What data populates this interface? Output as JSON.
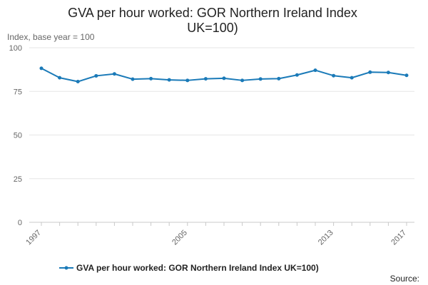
{
  "chart_data": {
    "type": "line",
    "title_lines": [
      "GVA per hour worked: GOR Northern Ireland Index",
      "UK=100)"
    ],
    "subtitle": "Index, base year = 100",
    "xlabel": "",
    "ylabel": "",
    "x": [
      1997,
      1998,
      1999,
      2000,
      2001,
      2002,
      2003,
      2004,
      2005,
      2006,
      2007,
      2008,
      2009,
      2010,
      2011,
      2012,
      2013,
      2014,
      2015,
      2016,
      2017
    ],
    "x_tick_labels": [
      "1997",
      "2005",
      "2013",
      "2017"
    ],
    "y_tick_labels": [
      "0",
      "25",
      "50",
      "75",
      "100"
    ],
    "ylim": [
      0,
      100
    ],
    "grid": true,
    "legend_position": "bottom",
    "series": [
      {
        "name": "GVA per hour worked: GOR Northern Ireland Index UK=100)",
        "values": [
          88.2,
          82.8,
          80.6,
          83.9,
          85.0,
          82.0,
          82.3,
          81.6,
          81.3,
          82.2,
          82.5,
          81.3,
          82.1,
          82.3,
          84.4,
          87.1,
          84.0,
          82.8,
          86.0,
          85.8,
          84.2
        ],
        "color": "#1a7ab8"
      }
    ],
    "source_label": "Source:"
  }
}
